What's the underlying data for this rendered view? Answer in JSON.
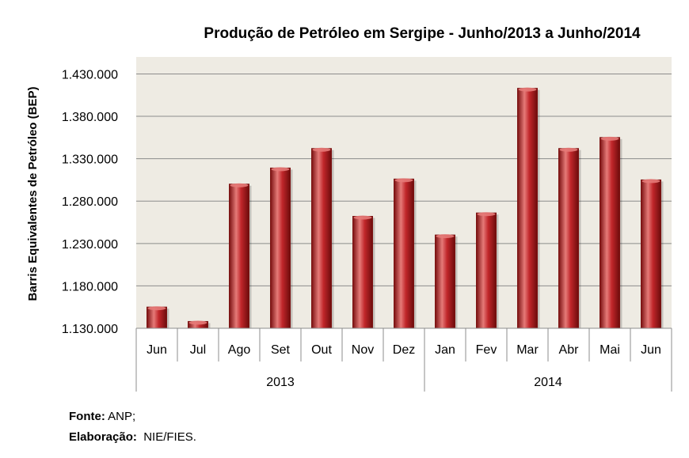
{
  "colors": {
    "plot_bg": "#eeebe3",
    "grid": "#8c8c8c",
    "bar_dark": "#7a1010",
    "bar_mid": "#c0262a",
    "bar_light": "#e57a78"
  },
  "chart_data": {
    "type": "bar",
    "title": "Produção  de Petróleo em Sergipe - Junho/2013 a Junho/2014",
    "ylabel": "Barris Equivalentes de Petróleo (BEP)",
    "xlabel": "",
    "ylim": [
      1130000,
      1450000
    ],
    "yticks": [
      1130000,
      1180000,
      1230000,
      1280000,
      1330000,
      1380000,
      1430000
    ],
    "ytick_labels": [
      "1.130.000",
      "1.180.000",
      "1.230.000",
      "1.280.000",
      "1.330.000",
      "1.380.000",
      "1.430.000"
    ],
    "categories": [
      "Jun",
      "Jul",
      "Ago",
      "Set",
      "Out",
      "Nov",
      "Dez",
      "Jan",
      "Fev",
      "Mar",
      "Abr",
      "Mai",
      "Jun"
    ],
    "groups": [
      {
        "label": "2013",
        "start": 0,
        "end": 6
      },
      {
        "label": "2014",
        "start": 7,
        "end": 12
      }
    ],
    "values": [
      1155000,
      1138000,
      1300000,
      1319000,
      1342000,
      1262000,
      1306000,
      1240000,
      1266000,
      1413000,
      1342000,
      1355000,
      1305000
    ],
    "grid": true,
    "legend": "none"
  },
  "footer": {
    "source_label": "Fonte:",
    "source_value": " ANP;",
    "credit_label": "Elaboração:",
    "credit_value": "  NIE/FIES."
  }
}
